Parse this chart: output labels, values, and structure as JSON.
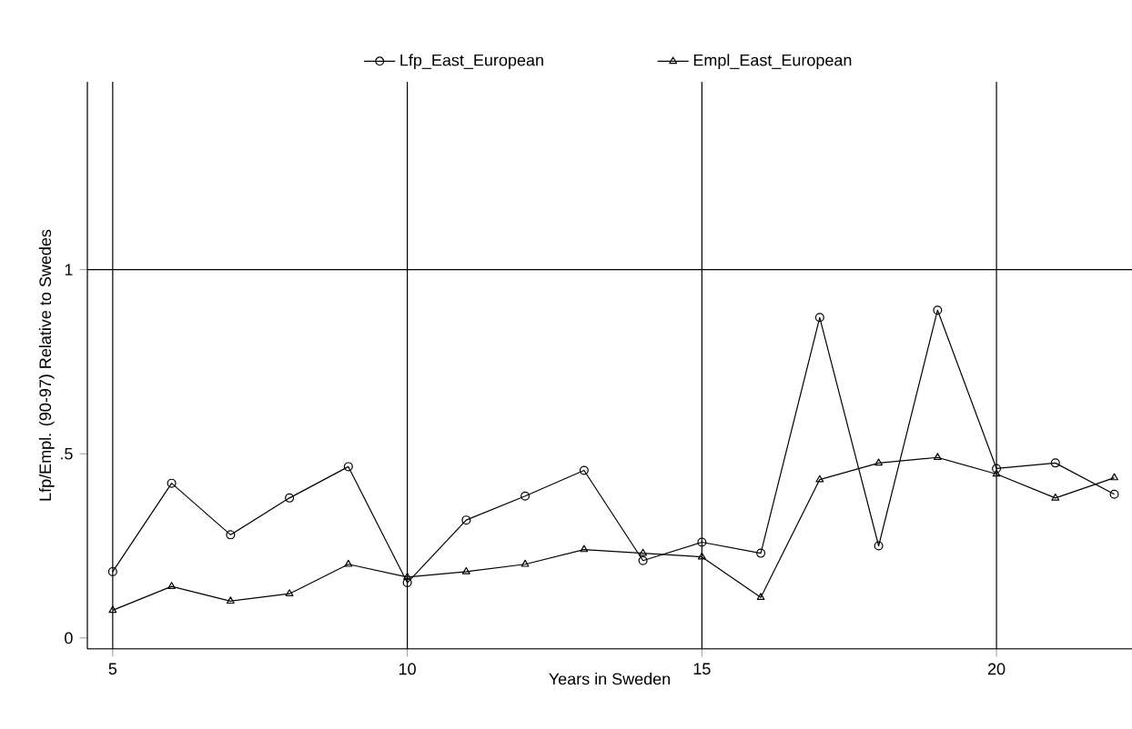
{
  "chart_data": {
    "type": "line",
    "xlabel": "Years in Sweden",
    "ylabel": "Lfp/Empl. (90-97) Relative to Swedes",
    "x": [
      5,
      6,
      7,
      8,
      9,
      10,
      11,
      12,
      13,
      14,
      15,
      16,
      17,
      18,
      19,
      20,
      21,
      22
    ],
    "series": [
      {
        "name": "Lfp_East_European",
        "color": "#000000",
        "marker": "circle",
        "values": [
          0.18,
          0.42,
          0.28,
          0.38,
          0.465,
          0.15,
          0.32,
          0.385,
          0.455,
          0.21,
          0.26,
          0.23,
          0.87,
          0.25,
          0.89,
          0.46,
          0.475,
          0.39
        ]
      },
      {
        "name": "Empl_East_European",
        "color": "#000000",
        "marker": "triangle",
        "values": [
          0.075,
          0.14,
          0.1,
          0.12,
          0.2,
          0.165,
          0.18,
          0.2,
          0.24,
          0.23,
          0.22,
          0.11,
          0.43,
          0.475,
          0.49,
          0.445,
          0.38,
          0.435
        ]
      }
    ],
    "xlim": [
      4.57,
      22.3
    ],
    "ylim": [
      -0.03,
      1.51
    ],
    "xticks": [
      5,
      10,
      15,
      20
    ],
    "yticks": [
      0,
      {
        "value": 0.5,
        "label": ".5"
      },
      1
    ],
    "grid": "x",
    "legend": "top",
    "line_style": "solid",
    "ref_lines": [
      {
        "axis": "y",
        "value": 1,
        "color": "#000000"
      }
    ]
  }
}
